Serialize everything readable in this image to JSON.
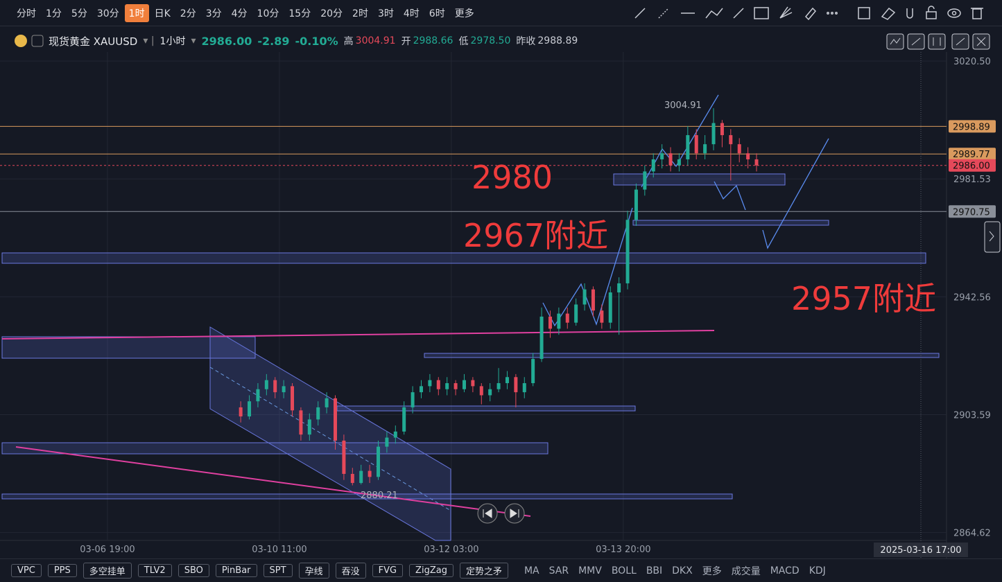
{
  "toolbar": [
    "分时",
    "1分",
    "5分",
    "30分",
    "1时",
    "日K",
    "2分",
    "3分",
    "4分",
    "10分",
    "15分",
    "20分",
    "2时",
    "3时",
    "4时",
    "6时",
    "更多"
  ],
  "header": {
    "symbol": "现货黄金 XAUUSD",
    "period": "1小时",
    "price": "2986.00",
    "change": "-2.89",
    "change_pct": "-0.10%",
    "high_label": "高",
    "high": "3004.91",
    "open_label": "开",
    "open": "2988.66",
    "low_label": "低",
    "low": "2978.50",
    "prev_label": "昨收",
    "prev": "2988.89"
  },
  "annotations": [
    "2980",
    "2967附近",
    "2957附近"
  ],
  "crosshair_time": "2025-03-16 17:00",
  "indicator_buttons": [
    "VPC",
    "PPS",
    "多空挂单",
    "TLV2",
    "SBO",
    "PinBar",
    "SPT",
    "孕线",
    "吞没",
    "FVG",
    "ZigZag",
    "定势之矛"
  ],
  "indicator_tabs": [
    "MA",
    "SAR",
    "MMV",
    "BOLL",
    "BBI",
    "DKX",
    "更多",
    "成交量",
    "MACD",
    "KDJ"
  ],
  "chart_data": {
    "type": "candlestick",
    "up_color": "#22ab94",
    "down_color": "#e5495a",
    "x": [
      31,
      33,
      35,
      37,
      39,
      41,
      43,
      45,
      47,
      49,
      51,
      53,
      55,
      57,
      59,
      61,
      63,
      65,
      67,
      69,
      71,
      73,
      75,
      77,
      79,
      81,
      83,
      85,
      87,
      89,
      91,
      93,
      95,
      97,
      99,
      101,
      103,
      105,
      107,
      109,
      111,
      113,
      115,
      117,
      119,
      121,
      123,
      125,
      127,
      129,
      131,
      133,
      135,
      137,
      139,
      141,
      143,
      145,
      147,
      149,
      151
    ],
    "open": [
      2906,
      2903,
      2908,
      2912,
      2915,
      2911,
      2913,
      2905,
      2897,
      2902,
      2906,
      2909,
      2895,
      2884,
      2881,
      2885,
      2883,
      2893,
      2896,
      2898,
      2906,
      2911,
      2913,
      2915,
      2912,
      2914,
      2912,
      2915,
      2913,
      2910,
      2912,
      2914,
      2916,
      2911,
      2914,
      2922,
      2936,
      2932,
      2937,
      2934,
      2940,
      2945,
      2938,
      2934,
      2944,
      2947,
      2968,
      2978,
      2984,
      2988,
      2990,
      2986,
      2988,
      2996,
      2990,
      2993,
      3000,
      2996,
      2993,
      2990,
      2988
    ],
    "high": [
      2908,
      2910,
      2914,
      2917,
      2916,
      2915,
      2914,
      2906,
      2904,
      2908,
      2911,
      2910,
      2897,
      2886,
      2887,
      2887,
      2895,
      2898,
      2900,
      2908,
      2913,
      2915,
      2917,
      2916,
      2916,
      2915,
      2917,
      2916,
      2914,
      2914,
      2919,
      2918,
      2917,
      2916,
      2924,
      2939,
      2938,
      2939,
      2939,
      2942,
      2947,
      2946,
      2940,
      2946,
      2949,
      2971,
      2980,
      2986,
      2990,
      2993,
      2992,
      2990,
      2999,
      2998,
      2996,
      3004.91,
      3001,
      2998,
      2995,
      2992,
      2990
    ],
    "low": [
      2901,
      2902,
      2906,
      2910,
      2909,
      2909,
      2903,
      2895,
      2895,
      2900,
      2904,
      2892,
      2882,
      2880.21,
      2880.5,
      2881,
      2882,
      2891,
      2894,
      2897,
      2904,
      2909,
      2911,
      2910,
      2910,
      2910,
      2911,
      2911,
      2907,
      2908,
      2911,
      2912,
      2906,
      2909,
      2913,
      2921,
      2929,
      2930,
      2932,
      2933,
      2938,
      2936,
      2932,
      2932,
      2930,
      2945,
      2966,
      2976,
      2982,
      2985,
      2984,
      2984,
      2986,
      2988,
      2988,
      2991,
      2992,
      2981,
      2987,
      2985,
      2984
    ],
    "close": [
      2903,
      2908,
      2912,
      2915,
      2911,
      2913,
      2905,
      2897,
      2902,
      2906,
      2909,
      2895,
      2884,
      2881,
      2885,
      2883,
      2893,
      2896,
      2898,
      2906,
      2911,
      2913,
      2915,
      2912,
      2914,
      2912,
      2915,
      2913,
      2910,
      2912,
      2914,
      2916,
      2911,
      2914,
      2922,
      2936,
      2932,
      2937,
      2934,
      2940,
      2945,
      2938,
      2934,
      2944,
      2947,
      2968,
      2978,
      2984,
      2988,
      2990,
      2986,
      2988,
      2996,
      2990,
      2993,
      3000,
      2996,
      2993,
      2990,
      2988,
      2986
    ],
    "xlim": [
      -25,
      195.2
    ],
    "xticks": [
      {
        "value": 0,
        "label": "03-06 19:00"
      },
      {
        "value": 40,
        "label": "03-10 11:00"
      },
      {
        "value": 80,
        "label": "03-12 03:00"
      },
      {
        "value": 120,
        "label": "03-13 20:00"
      }
    ],
    "ylim": [
      2862,
      3023.5
    ],
    "yticks": [
      {
        "value": 3020.5,
        "label": "3020.50"
      },
      2981.53,
      2942.56,
      2903.59,
      2864.62
    ],
    "price_lines": [
      {
        "value": 2998.89,
        "color": "#d99a5e"
      },
      {
        "value": 2989.77,
        "color": "#d99a5e"
      },
      {
        "value": 2986,
        "label": "2986.00",
        "color": "#e5495a"
      },
      {
        "value": 2970.75,
        "color": "#8a8f99"
      }
    ],
    "grid": true
  }
}
